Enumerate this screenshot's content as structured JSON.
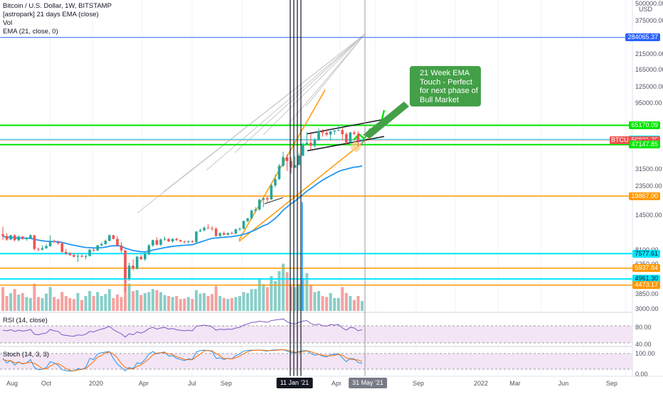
{
  "legend": {
    "title": "Bitcoin / U.S. Dollar, 1W, BITSTAMP",
    "line2": "[astropark] 21 days EMA (close)",
    "line3": "Vol",
    "line4": "EMA (21, close, 0)"
  },
  "panes": {
    "rsi_label": "RSI (14, close)",
    "stoch_label": "Stoch (14, 3, 3)"
  },
  "annotation": {
    "lines": [
      "21 Week EMA",
      "Touch - Perfect",
      "for next phase of",
      "Bull Market"
    ]
  },
  "axis": {
    "usd_label": "USD",
    "price_ticks": [
      {
        "label": "500000.00",
        "value": 500000
      },
      {
        "label": "375000.00",
        "value": 375000
      },
      {
        "label": "215000.00",
        "value": 215000
      },
      {
        "label": "165000.00",
        "value": 165000
      },
      {
        "label": "125000.00",
        "value": 125000
      },
      {
        "label": "95000.00",
        "value": 95000
      },
      {
        "label": "31500.00",
        "value": 31500
      },
      {
        "label": "23500.00",
        "value": 23500
      },
      {
        "label": "14500.00",
        "value": 14500
      },
      {
        "label": "8100.00",
        "value": 8100
      },
      {
        "label": "6350.00",
        "value": 6350
      },
      {
        "label": "3850.00",
        "value": 3850
      },
      {
        "label": "3000.00",
        "value": 3000
      }
    ],
    "rsi_ticks": [
      "80.00",
      "40.00"
    ],
    "stoch_ticks": [
      "100.00",
      "0.00"
    ],
    "x_ticks": [
      "Aug",
      "Oct",
      "2020",
      "Apr",
      "Jul",
      "Sep",
      "Apr",
      "Sep",
      "2022",
      "Mar",
      "Jun",
      "Sep"
    ],
    "x_highlights": [
      "11 Jan '21",
      "31 May '21"
    ]
  },
  "price_tags": [
    {
      "label": "284065.37",
      "value": 284065.37,
      "color": "#2962ff",
      "text_color": "#ffffff"
    },
    {
      "label": "65170.09",
      "value": 65170.09,
      "color": "#00e600",
      "text_color": "#ffffff"
    },
    {
      "label": "51541.00",
      "value": 51541.0,
      "color": "#00e5ff",
      "text_color": "#131722"
    },
    {
      "label": "BTCUSD",
      "value": 50821.75,
      "color": "#ef5350",
      "text_color": "#ffffff",
      "side": "left"
    },
    {
      "label": "50821.75",
      "value": 50821.75,
      "color": "#ef5350",
      "text_color": "#ffffff"
    },
    {
      "label": "3d 10h",
      "value": 48300,
      "color": "#ef5350",
      "text_color": "#ffffff"
    },
    {
      "label": "47147.85",
      "value": 47147.85,
      "color": "#00e600",
      "text_color": "#ffffff"
    },
    {
      "label": "19867.00",
      "value": 19867.0,
      "color": "#ff9800",
      "text_color": "#ffffff"
    },
    {
      "label": "5937.84",
      "value": 5937.84,
      "color": "#ff9800",
      "text_color": "#ffffff"
    },
    {
      "label": "7577.61",
      "value": 7577.61,
      "color": "#00e5ff",
      "text_color": "#131722"
    },
    {
      "label": "4961.30",
      "value": 4961.3,
      "color": "#00e5ff",
      "text_color": "#131722"
    },
    {
      "label": "4473.17",
      "value": 4473.17,
      "color": "#ff9800",
      "text_color": "#ffffff"
    }
  ],
  "colors": {
    "up": "#26a69a",
    "down": "#ef5350",
    "ema": "#2196f3",
    "channel": "#ff9800",
    "support_green": "#00e600",
    "cyan": "#00e5ff",
    "blue_line": "#2962ff",
    "fib_fan": "#c8c8c8",
    "pane_bg": "#f3e5f5",
    "annotation": "#43a047"
  },
  "chart_data": {
    "type": "candlestick",
    "symbol": "BTCUSD",
    "scale": "log",
    "last_price": 50821.75,
    "candles": [
      [
        10500,
        11900,
        9500,
        10200
      ],
      [
        10200,
        10700,
        9400,
        9600
      ],
      [
        9600,
        10400,
        9500,
        10300
      ],
      [
        10300,
        10500,
        9300,
        9500
      ],
      [
        9500,
        10300,
        9300,
        10100
      ],
      [
        10100,
        10200,
        9600,
        9700
      ],
      [
        9700,
        10000,
        9400,
        9800
      ],
      [
        9800,
        10500,
        9700,
        10300
      ],
      [
        10300,
        10400,
        8000,
        8200
      ],
      [
        8200,
        8400,
        7900,
        8100
      ],
      [
        8100,
        8700,
        8000,
        8300
      ],
      [
        8300,
        8900,
        8200,
        8600
      ],
      [
        8600,
        10300,
        8500,
        9300
      ],
      [
        9300,
        9600,
        9100,
        9200
      ],
      [
        9200,
        9400,
        8800,
        9000
      ],
      [
        9000,
        9200,
        7700,
        7800
      ],
      [
        7800,
        8200,
        7400,
        7600
      ],
      [
        7600,
        7800,
        7300,
        7400
      ],
      [
        7400,
        7700,
        7100,
        7200
      ],
      [
        7200,
        7600,
        6600,
        7300
      ],
      [
        7300,
        7500,
        7100,
        7200
      ],
      [
        7200,
        7400,
        6900,
        7300
      ],
      [
        7300,
        8200,
        7200,
        8100
      ],
      [
        8100,
        8400,
        7800,
        8000
      ],
      [
        8000,
        8800,
        7900,
        8700
      ],
      [
        8700,
        9200,
        8600,
        8900
      ],
      [
        8900,
        9600,
        8800,
        9400
      ],
      [
        9400,
        10500,
        9300,
        10300
      ],
      [
        10300,
        10400,
        9600,
        9700
      ],
      [
        9700,
        10200,
        8500,
        8700
      ],
      [
        8700,
        9200,
        7700,
        8000
      ],
      [
        8000,
        8100,
        4000,
        5000
      ],
      [
        5000,
        6500,
        4800,
        6200
      ],
      [
        6200,
        6900,
        5700,
        5900
      ],
      [
        5900,
        7300,
        5800,
        7200
      ],
      [
        7200,
        7400,
        6800,
        6900
      ],
      [
        6900,
        7800,
        6700,
        7500
      ],
      [
        7500,
        8900,
        7400,
        8700
      ],
      [
        8700,
        9600,
        8500,
        9500
      ],
      [
        9500,
        10000,
        8700,
        8800
      ],
      [
        8800,
        9800,
        8600,
        9600
      ],
      [
        9600,
        10100,
        9400,
        9700
      ],
      [
        9700,
        9800,
        9200,
        9300
      ],
      [
        9300,
        9800,
        9100,
        9700
      ],
      [
        9700,
        9900,
        9400,
        9500
      ],
      [
        9500,
        9600,
        9200,
        9300
      ],
      [
        9300,
        9400,
        9000,
        9200
      ],
      [
        9200,
        9500,
        9000,
        9300
      ],
      [
        9300,
        9500,
        9100,
        9200
      ],
      [
        9200,
        11000,
        9100,
        11000
      ],
      [
        11000,
        11500,
        10900,
        11200
      ],
      [
        11200,
        12000,
        11000,
        11700
      ],
      [
        11700,
        12400,
        11500,
        11600
      ],
      [
        11600,
        12000,
        11100,
        11500
      ],
      [
        11500,
        11800,
        10000,
        10200
      ],
      [
        10200,
        10800,
        10000,
        10700
      ],
      [
        10700,
        11000,
        10300,
        10400
      ],
      [
        10400,
        10800,
        10300,
        10700
      ],
      [
        10700,
        11000,
        10500,
        10600
      ],
      [
        10600,
        11500,
        10500,
        11400
      ],
      [
        11400,
        11800,
        11100,
        11500
      ],
      [
        11500,
        13200,
        11400,
        13100
      ],
      [
        13100,
        13800,
        12800,
        13700
      ],
      [
        13700,
        15900,
        13500,
        15600
      ],
      [
        15600,
        16500,
        15100,
        15900
      ],
      [
        15900,
        19000,
        15500,
        18700
      ],
      [
        18700,
        19500,
        16500,
        19200
      ],
      [
        19200,
        19900,
        17600,
        18800
      ],
      [
        18800,
        24300,
        18700,
        23800
      ],
      [
        23800,
        28500,
        23000,
        26400
      ],
      [
        26400,
        34000,
        26100,
        33000
      ],
      [
        33000,
        41900,
        32500,
        38200
      ],
      [
        38200,
        40100,
        30400,
        35800
      ],
      [
        35800,
        38000,
        29000,
        32000
      ],
      [
        32000,
        38700,
        31900,
        33500
      ],
      [
        33500,
        41000,
        33300,
        39200
      ],
      [
        39200,
        48900,
        38800,
        47100
      ],
      [
        47100,
        58300,
        46700,
        48600
      ],
      [
        48600,
        56400,
        43100,
        46200
      ],
      [
        46200,
        52600,
        45000,
        50900
      ],
      [
        50900,
        61700,
        50300,
        59000
      ],
      [
        59000,
        61000,
        53800,
        57500
      ],
      [
        57500,
        59900,
        54000,
        55800
      ],
      [
        55800,
        59400,
        50600,
        58800
      ],
      [
        58800,
        60000,
        55500,
        59900
      ],
      [
        59900,
        64800,
        59700,
        60100
      ],
      [
        60100,
        63000,
        51000,
        56200
      ],
      [
        56200,
        58000,
        47000,
        48900
      ],
      [
        48900,
        58400,
        48400,
        57800
      ],
      [
        57800,
        59600,
        55200,
        56500
      ],
      [
        56500,
        58900,
        45800,
        49700
      ],
      [
        49700,
        51000,
        46500,
        50800
      ]
    ],
    "ema21": [
      10100,
      10000,
      9950,
      9900,
      9850,
      9820,
      9800,
      9790,
      9650,
      9500,
      9400,
      9320,
      9300,
      9280,
      9250,
      9140,
      9000,
      8850,
      8720,
      8600,
      8500,
      8400,
      8380,
      8340,
      8350,
      8380,
      8450,
      8580,
      8650,
      8660,
      8600,
      8300,
      8150,
      7980,
      7900,
      7830,
      7800,
      7890,
      8050,
      8150,
      8270,
      8390,
      8470,
      8560,
      8630,
      8680,
      8720,
      8760,
      8800,
      9000,
      9200,
      9400,
      9600,
      9800,
      9850,
      9920,
      9970,
      10030,
      10080,
      10200,
      10300,
      10500,
      10700,
      11000,
      11300,
      11700,
      12100,
      12400,
      13000,
      13700,
      14600,
      15700,
      16600,
      17500,
      18300,
      19300,
      20400,
      21600,
      22600,
      23700,
      24900,
      26000,
      27000,
      28000,
      29000,
      30000,
      30800,
      31200,
      31800,
      32300,
      32500,
      33000
    ],
    "volume": [
      48,
      30,
      36,
      44,
      33,
      36,
      28,
      26,
      55,
      28,
      26,
      35,
      48,
      28,
      24,
      38,
      30,
      26,
      24,
      36,
      22,
      30,
      40,
      30,
      38,
      30,
      34,
      44,
      26,
      33,
      28,
      90,
      55,
      40,
      42,
      32,
      36,
      38,
      44,
      42,
      38,
      32,
      30,
      28,
      30,
      24,
      25,
      28,
      24,
      42,
      35,
      36,
      30,
      34,
      50,
      30,
      26,
      24,
      26,
      28,
      30,
      38,
      36,
      44,
      44,
      66,
      54,
      48,
      70,
      60,
      80,
      95,
      78,
      50,
      48,
      54,
      64,
      76,
      52,
      38,
      40,
      30,
      28,
      36,
      26,
      26,
      48,
      36,
      30,
      22,
      30,
      20
    ],
    "rsi": [
      52,
      50,
      54,
      48,
      52,
      49,
      51,
      55,
      38,
      36,
      40,
      42,
      55,
      50,
      48,
      36,
      34,
      32,
      31,
      36,
      34,
      38,
      48,
      46,
      52,
      56,
      60,
      66,
      54,
      46,
      40,
      28,
      40,
      36,
      46,
      42,
      48,
      58,
      62,
      56,
      60,
      62,
      56,
      58,
      54,
      52,
      50,
      52,
      50,
      66,
      68,
      70,
      68,
      64,
      52,
      56,
      54,
      56,
      55,
      60,
      62,
      70,
      74,
      80,
      80,
      84,
      82,
      80,
      86,
      88,
      90,
      92,
      82,
      76,
      74,
      80,
      84,
      86,
      76,
      70,
      74,
      68,
      66,
      72,
      70,
      72,
      60,
      52,
      62,
      60,
      50,
      54
    ],
    "stoch_k": [
      60,
      40,
      50,
      30,
      45,
      35,
      40,
      55,
      20,
      10,
      12,
      20,
      45,
      40,
      30,
      10,
      6,
      4,
      5,
      15,
      12,
      20,
      60,
      55,
      80,
      85,
      88,
      90,
      60,
      35,
      20,
      5,
      20,
      15,
      40,
      38,
      55,
      80,
      90,
      80,
      85,
      88,
      70,
      72,
      60,
      55,
      50,
      58,
      55,
      88,
      94,
      96,
      94,
      90,
      60,
      62,
      55,
      60,
      58,
      72,
      80,
      92,
      95,
      96,
      96,
      97,
      94,
      92,
      96,
      97,
      98,
      98,
      92,
      86,
      84,
      90,
      94,
      94,
      82,
      74,
      78,
      70,
      66,
      76,
      78,
      80,
      62,
      45,
      60,
      58,
      42,
      38
    ],
    "stoch_d": [
      55,
      50,
      50,
      40,
      42,
      37,
      40,
      43,
      38,
      28,
      14,
      14,
      26,
      35,
      38,
      27,
      15,
      7,
      5,
      9,
      11,
      16,
      31,
      46,
      65,
      73,
      84,
      88,
      79,
      62,
      38,
      20,
      15,
      13,
      25,
      31,
      44,
      58,
      75,
      83,
      85,
      84,
      81,
      77,
      67,
      62,
      55,
      54,
      54,
      67,
      79,
      93,
      95,
      93,
      81,
      71,
      59,
      59,
      58,
      63,
      70,
      81,
      89,
      94,
      96,
      96,
      96,
      94,
      94,
      95,
      97,
      98,
      96,
      92,
      87,
      87,
      89,
      93,
      90,
      83,
      78,
      74,
      71,
      71,
      73,
      78,
      73,
      62,
      56,
      54,
      53,
      46
    ],
    "horizontal_levels": [
      284065.37,
      65170.09,
      51541.0,
      47147.85,
      19867.0,
      7577.61,
      5937.84,
      4961.3,
      4473.17
    ],
    "y_range": [
      2900,
      520000
    ]
  }
}
